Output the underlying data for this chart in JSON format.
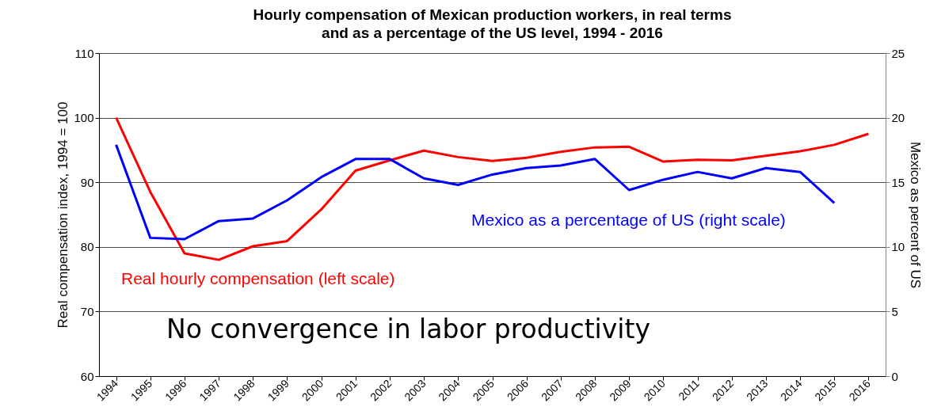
{
  "chart_data": {
    "type": "line",
    "title": "Hourly compensation of Mexican production workers, in real terms and as a percentage of the US level, 1994 - 2016",
    "ylabel": "Real compensation index, 1994 = 100",
    "y2label": "Mexico as percent of US",
    "categories": [
      "1994",
      "1995",
      "1996",
      "1997",
      "1998",
      "1999",
      "2000",
      "2001",
      "2002",
      "2003",
      "2004",
      "2005",
      "2006",
      "2007",
      "2008",
      "2009",
      "2010",
      "2011",
      "2012",
      "2013",
      "2014",
      "2015",
      "2016"
    ],
    "series": [
      {
        "name": "Real hourly compensation (left scale)",
        "color": "#ff0000",
        "values": [
          100,
          88.5,
          79.0,
          78.0,
          80.1,
          80.9,
          85.8,
          91.8,
          93.4,
          94.9,
          93.9,
          93.3,
          93.8,
          94.7,
          95.4,
          95.5,
          93.2,
          93.5,
          93.4,
          94.1,
          94.8,
          95.8,
          97.5
        ]
      },
      {
        "name": "Mexico as a percentage of US (right scale)",
        "color": "#0000ff",
        "axis": "y2",
        "values": [
          17.9,
          10.7,
          10.6,
          12.0,
          12.2,
          13.6,
          15.4,
          16.8,
          16.8,
          15.3,
          14.8,
          15.6,
          16.1,
          16.3,
          16.8,
          14.4,
          15.2,
          15.8,
          15.3,
          16.1,
          15.8,
          13.4,
          null
        ]
      }
    ],
    "ylim": [
      60,
      110
    ],
    "yticks": [
      60,
      70,
      80,
      90,
      100,
      110
    ],
    "y2lim": [
      0,
      25
    ],
    "y2ticks": [
      0,
      5,
      10,
      15,
      20,
      25
    ],
    "grid": "y",
    "marker": "none",
    "line_style": "solid",
    "annotations": [
      "No convergence in labor productivity"
    ]
  }
}
